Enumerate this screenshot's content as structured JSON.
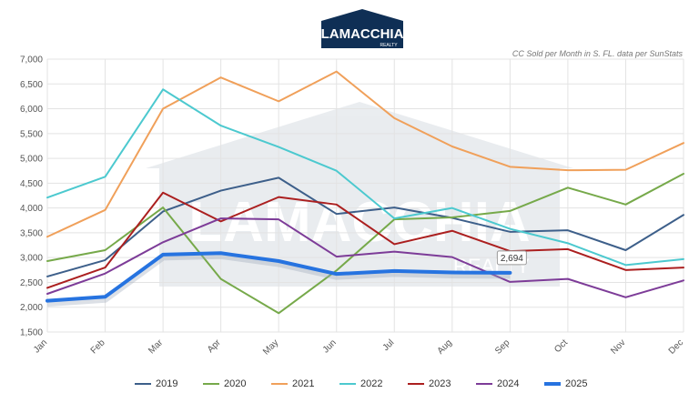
{
  "logo": {
    "text": "LAMACCHIA",
    "sub": "REALTY",
    "watermark": "LAMACCHIA",
    "watermark_sub": "REALTY"
  },
  "chart_data": {
    "type": "line",
    "subtitle": "CC Sold per Month in S. FL. data per SunStats",
    "categories": [
      "Jan",
      "Feb",
      "Mar",
      "Apr",
      "May",
      "Jun",
      "Jul",
      "Aug",
      "Sep",
      "Oct",
      "Nov",
      "Dec"
    ],
    "ylim": [
      1500,
      7000
    ],
    "yticks": [
      1500,
      2000,
      2500,
      3000,
      3500,
      4000,
      4500,
      5000,
      5500,
      6000,
      6500,
      7000
    ],
    "ytick_labels": [
      "1,500",
      "2,000",
      "2,500",
      "3,000",
      "3,500",
      "4,000",
      "4,500",
      "5,000",
      "5,500",
      "6,000",
      "6,500",
      "7,000"
    ],
    "grid": true,
    "legend_position": "bottom",
    "series": [
      {
        "name": "2019",
        "color": "#3d5f8a",
        "values": [
          2620,
          2950,
          3930,
          4350,
          4610,
          3880,
          4010,
          3800,
          3520,
          3550,
          3150,
          3860
        ]
      },
      {
        "name": "2020",
        "color": "#76a94a",
        "values": [
          2930,
          3150,
          4010,
          2570,
          1880,
          2740,
          3770,
          3810,
          3940,
          4410,
          4070,
          4690
        ]
      },
      {
        "name": "2021",
        "color": "#f0a05a",
        "values": [
          3420,
          3960,
          6000,
          6630,
          6150,
          6750,
          5810,
          5240,
          4830,
          4760,
          4770,
          5310
        ]
      },
      {
        "name": "2022",
        "color": "#4cc9cf",
        "values": [
          4210,
          4630,
          6390,
          5660,
          5230,
          4750,
          3790,
          4000,
          3580,
          3290,
          2850,
          2970
        ]
      },
      {
        "name": "2023",
        "color": "#ab1f1f",
        "values": [
          2390,
          2800,
          4310,
          3730,
          4220,
          4070,
          3270,
          3540,
          3130,
          3170,
          2750,
          2800
        ]
      },
      {
        "name": "2024",
        "color": "#7d3c98",
        "values": [
          2270,
          2680,
          3310,
          3790,
          3770,
          3020,
          3120,
          3010,
          2510,
          2570,
          2200,
          2540
        ]
      },
      {
        "name": "2025",
        "color": "#2673e0",
        "values": [
          2130,
          2210,
          3060,
          3090,
          2930,
          2670,
          2730,
          2700,
          2694,
          null,
          null,
          null
        ],
        "bold": true
      }
    ],
    "annotations": [
      {
        "series": "2025",
        "x": "Sep",
        "text": "2,694"
      }
    ]
  }
}
